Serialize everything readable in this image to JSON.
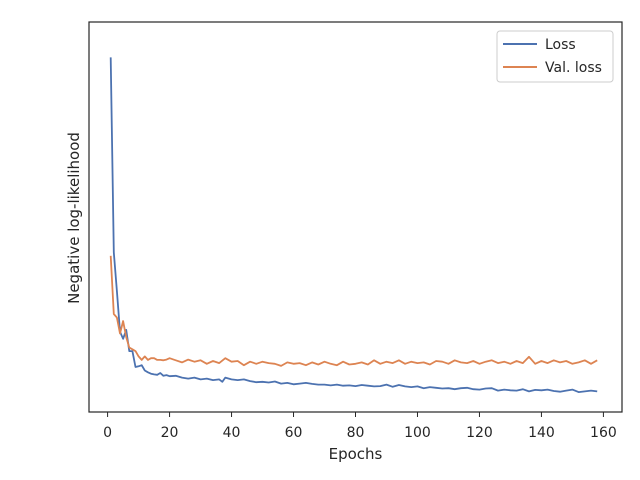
{
  "chart_data": {
    "type": "line",
    "xlabel": "Epochs",
    "ylabel": "Negative log-likelihood",
    "xlim": [
      -6,
      166
    ],
    "ylim": [
      0,
      1
    ],
    "xticks": [
      0,
      20,
      40,
      60,
      80,
      100,
      120,
      140,
      160
    ],
    "grid": false,
    "legend_position": "top-right",
    "series": [
      {
        "name": "Loss",
        "color": "#4c72b0",
        "points": [
          [
            1,
            0.962
          ],
          [
            2,
            0.41
          ],
          [
            3,
            0.3
          ],
          [
            4,
            0.185
          ],
          [
            5,
            0.165
          ],
          [
            6,
            0.19
          ],
          [
            7,
            0.13
          ],
          [
            8,
            0.13
          ],
          [
            9,
            0.085
          ],
          [
            10,
            0.087
          ],
          [
            11,
            0.09
          ],
          [
            12,
            0.075
          ],
          [
            13,
            0.07
          ],
          [
            14,
            0.066
          ],
          [
            15,
            0.064
          ],
          [
            16,
            0.063
          ],
          [
            17,
            0.068
          ],
          [
            18,
            0.06
          ],
          [
            19,
            0.062
          ],
          [
            20,
            0.059
          ],
          [
            22,
            0.06
          ],
          [
            24,
            0.055
          ],
          [
            26,
            0.052
          ],
          [
            28,
            0.055
          ],
          [
            30,
            0.05
          ],
          [
            32,
            0.052
          ],
          [
            34,
            0.048
          ],
          [
            36,
            0.05
          ],
          [
            37,
            0.043
          ],
          [
            38,
            0.055
          ],
          [
            40,
            0.05
          ],
          [
            42,
            0.048
          ],
          [
            44,
            0.05
          ],
          [
            46,
            0.045
          ],
          [
            48,
            0.042
          ],
          [
            50,
            0.043
          ],
          [
            52,
            0.041
          ],
          [
            54,
            0.044
          ],
          [
            56,
            0.038
          ],
          [
            58,
            0.04
          ],
          [
            60,
            0.036
          ],
          [
            62,
            0.038
          ],
          [
            64,
            0.04
          ],
          [
            66,
            0.037
          ],
          [
            68,
            0.035
          ],
          [
            70,
            0.035
          ],
          [
            72,
            0.033
          ],
          [
            74,
            0.035
          ],
          [
            76,
            0.032
          ],
          [
            78,
            0.033
          ],
          [
            80,
            0.031
          ],
          [
            82,
            0.034
          ],
          [
            84,
            0.032
          ],
          [
            86,
            0.03
          ],
          [
            88,
            0.031
          ],
          [
            90,
            0.035
          ],
          [
            92,
            0.029
          ],
          [
            94,
            0.034
          ],
          [
            96,
            0.03
          ],
          [
            98,
            0.028
          ],
          [
            100,
            0.03
          ],
          [
            102,
            0.025
          ],
          [
            104,
            0.028
          ],
          [
            106,
            0.026
          ],
          [
            108,
            0.024
          ],
          [
            110,
            0.025
          ],
          [
            112,
            0.022
          ],
          [
            114,
            0.025
          ],
          [
            116,
            0.026
          ],
          [
            118,
            0.022
          ],
          [
            120,
            0.021
          ],
          [
            122,
            0.024
          ],
          [
            124,
            0.025
          ],
          [
            126,
            0.018
          ],
          [
            128,
            0.021
          ],
          [
            130,
            0.019
          ],
          [
            132,
            0.018
          ],
          [
            134,
            0.022
          ],
          [
            136,
            0.016
          ],
          [
            138,
            0.02
          ],
          [
            140,
            0.019
          ],
          [
            142,
            0.021
          ],
          [
            144,
            0.017
          ],
          [
            146,
            0.015
          ],
          [
            148,
            0.018
          ],
          [
            150,
            0.021
          ],
          [
            152,
            0.014
          ],
          [
            154,
            0.016
          ],
          [
            156,
            0.018
          ],
          [
            158,
            0.016
          ]
        ]
      },
      {
        "name": "Val. loss",
        "color": "#dd8452",
        "points": [
          [
            1,
            0.4
          ],
          [
            2,
            0.235
          ],
          [
            3,
            0.225
          ],
          [
            4,
            0.18
          ],
          [
            5,
            0.215
          ],
          [
            6,
            0.17
          ],
          [
            7,
            0.14
          ],
          [
            8,
            0.135
          ],
          [
            9,
            0.13
          ],
          [
            10,
            0.115
          ],
          [
            11,
            0.105
          ],
          [
            12,
            0.115
          ],
          [
            13,
            0.105
          ],
          [
            14,
            0.11
          ],
          [
            15,
            0.11
          ],
          [
            16,
            0.105
          ],
          [
            17,
            0.105
          ],
          [
            18,
            0.104
          ],
          [
            19,
            0.106
          ],
          [
            20,
            0.11
          ],
          [
            22,
            0.104
          ],
          [
            24,
            0.098
          ],
          [
            26,
            0.106
          ],
          [
            28,
            0.1
          ],
          [
            30,
            0.104
          ],
          [
            32,
            0.094
          ],
          [
            34,
            0.102
          ],
          [
            36,
            0.096
          ],
          [
            38,
            0.11
          ],
          [
            40,
            0.1
          ],
          [
            42,
            0.102
          ],
          [
            44,
            0.09
          ],
          [
            46,
            0.1
          ],
          [
            48,
            0.094
          ],
          [
            50,
            0.1
          ],
          [
            52,
            0.096
          ],
          [
            54,
            0.094
          ],
          [
            56,
            0.088
          ],
          [
            58,
            0.098
          ],
          [
            60,
            0.094
          ],
          [
            62,
            0.096
          ],
          [
            64,
            0.09
          ],
          [
            66,
            0.098
          ],
          [
            68,
            0.092
          ],
          [
            70,
            0.1
          ],
          [
            72,
            0.094
          ],
          [
            74,
            0.09
          ],
          [
            76,
            0.1
          ],
          [
            78,
            0.092
          ],
          [
            80,
            0.094
          ],
          [
            82,
            0.098
          ],
          [
            84,
            0.092
          ],
          [
            86,
            0.104
          ],
          [
            88,
            0.094
          ],
          [
            90,
            0.1
          ],
          [
            92,
            0.096
          ],
          [
            94,
            0.104
          ],
          [
            96,
            0.094
          ],
          [
            98,
            0.1
          ],
          [
            100,
            0.096
          ],
          [
            102,
            0.098
          ],
          [
            104,
            0.092
          ],
          [
            106,
            0.102
          ],
          [
            108,
            0.1
          ],
          [
            110,
            0.094
          ],
          [
            112,
            0.104
          ],
          [
            114,
            0.098
          ],
          [
            116,
            0.096
          ],
          [
            118,
            0.102
          ],
          [
            120,
            0.094
          ],
          [
            122,
            0.1
          ],
          [
            124,
            0.104
          ],
          [
            126,
            0.096
          ],
          [
            128,
            0.1
          ],
          [
            130,
            0.094
          ],
          [
            132,
            0.102
          ],
          [
            134,
            0.096
          ],
          [
            136,
            0.114
          ],
          [
            138,
            0.094
          ],
          [
            140,
            0.102
          ],
          [
            142,
            0.096
          ],
          [
            144,
            0.104
          ],
          [
            146,
            0.098
          ],
          [
            148,
            0.102
          ],
          [
            150,
            0.094
          ],
          [
            152,
            0.098
          ],
          [
            154,
            0.104
          ],
          [
            156,
            0.094
          ],
          [
            158,
            0.104
          ]
        ]
      }
    ]
  }
}
